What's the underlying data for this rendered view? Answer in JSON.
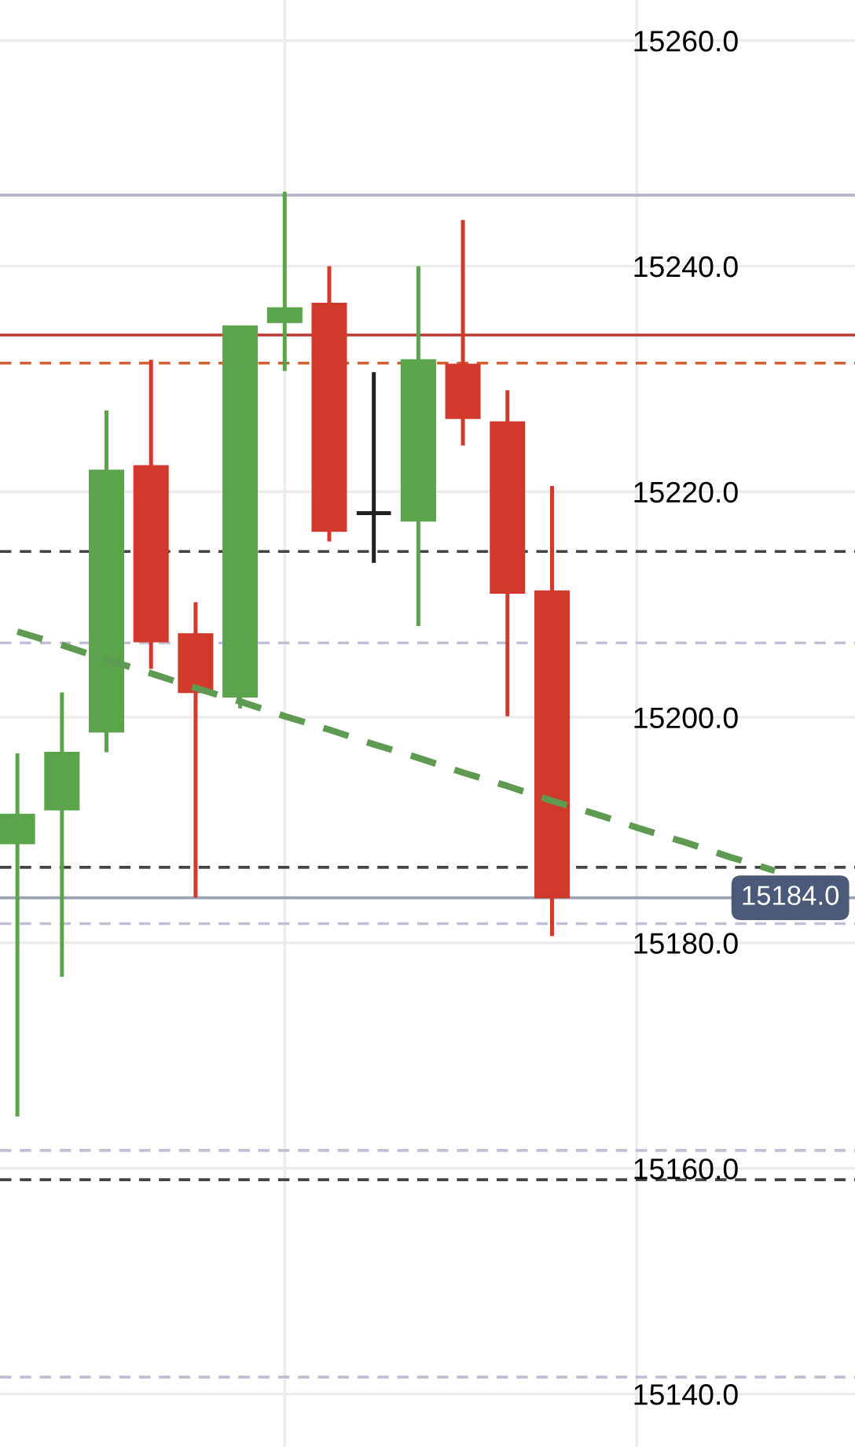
{
  "chart_data": {
    "type": "candlestick",
    "categories": [
      null,
      null,
      null,
      null,
      null,
      null,
      null,
      null,
      null,
      null,
      null,
      null,
      null,
      null,
      null,
      null,
      null,
      null,
      null
    ],
    "ohlc": [
      [
        15188.8,
        15196.8,
        15164.6,
        15191.4
      ],
      [
        15191.8,
        15202.2,
        15177.0,
        15196.9
      ],
      [
        15198.7,
        15227.2,
        15196.9,
        15221.9
      ],
      [
        15222.3,
        15231.7,
        15204.3,
        15206.7
      ],
      [
        15207.4,
        15210.2,
        15184.0,
        15202.2
      ],
      [
        15201.8,
        15234.7,
        15200.8,
        15234.7
      ],
      [
        15235.0,
        15246.6,
        15230.7,
        15236.3
      ],
      [
        15236.7,
        15240.0,
        15215.6,
        15216.5
      ],
      [
        15218.1,
        15230.6,
        15213.7,
        15218.1
      ],
      [
        15217.4,
        15240.0,
        15208.1,
        15231.7
      ],
      [
        15231.3,
        15244.1,
        15224.1,
        15226.5
      ],
      [
        15226.2,
        15229.0,
        15200.1,
        15211.0
      ],
      [
        15211.2,
        15220.5,
        15180.6,
        15184.0
      ],
      null,
      null,
      null,
      null,
      null,
      null
    ],
    "colors": [
      "#5ba44c",
      "#5ba44c",
      "#5ba44c",
      "#d0392b",
      "#d0392b",
      "#5ba44c",
      "#5ba44c",
      "#d0392b",
      "#222222",
      "#5ba44c",
      "#d0392b",
      "#d0392b",
      "#d0392b",
      null,
      null,
      null,
      null,
      null,
      null
    ],
    "series": [
      {
        "type": "line",
        "values": [
          15207.6,
          15206.4,
          15205.1,
          15203.9,
          15202.6,
          15201.4,
          15200.1,
          15198.9,
          15197.6,
          15196.4,
          15195.1,
          15193.9,
          15192.6,
          15191.4,
          15190.1,
          15188.9,
          15187.6,
          15186.4,
          null
        ],
        "color": "#5e9a52",
        "line_style": "dashed"
      }
    ],
    "ylim": [
      15135.3,
      15263.6
    ],
    "yticks": [
      {
        "value": 15140,
        "label": "15140.0"
      },
      {
        "value": 15160,
        "label": "15160.0"
      },
      {
        "value": 15180,
        "label": "15180.0"
      },
      {
        "value": 15200,
        "label": "15200.0"
      },
      {
        "value": 15220,
        "label": "15220.0"
      },
      {
        "value": 15240,
        "label": "15240.0"
      },
      {
        "value": 15260,
        "label": "15260.0"
      }
    ],
    "tick_labels": "y",
    "grid": "y",
    "ref_lines": [
      {
        "axis": "y",
        "value": 15246.3,
        "color": "#b8b4c8",
        "line_style": "solid"
      },
      {
        "axis": "y",
        "value": 15233.9,
        "color": "#b83a36",
        "line_style": "solid"
      },
      {
        "axis": "y",
        "value": 15231.4,
        "color": "#d35f30",
        "line_style": "dashed"
      },
      {
        "axis": "y",
        "value": 15214.7,
        "color": "#444444",
        "line_style": "dashed"
      },
      {
        "axis": "y",
        "value": 15206.6,
        "color": "#c4bdd6",
        "line_style": "dashed"
      },
      {
        "axis": "y",
        "value": 15186.7,
        "color": "#444444",
        "line_style": "dashed"
      },
      {
        "axis": "y",
        "value": 15184.0,
        "color": "#9aa3b0",
        "line_style": "solid",
        "label": "15184.0"
      },
      {
        "axis": "y",
        "value": 15181.7,
        "color": "#c4bdd6",
        "line_style": "dashed"
      },
      {
        "axis": "y",
        "value": 15161.6,
        "color": "#c4bdd6",
        "line_style": "dashed"
      },
      {
        "axis": "y",
        "value": 15159.0,
        "color": "#444444",
        "line_style": "dashed"
      },
      {
        "axis": "y",
        "value": 15141.5,
        "color": "#c4bdd6",
        "line_style": "dashed"
      }
    ]
  }
}
